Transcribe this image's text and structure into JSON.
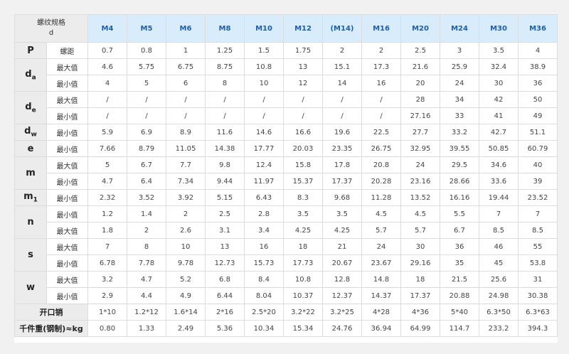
{
  "header": {
    "corner_title": "螺纹规格",
    "corner_symbol": "d",
    "sizes": [
      "M4",
      "M5",
      "M6",
      "M8",
      "M10",
      "M12",
      "(M14)",
      "M16",
      "M20",
      "M24",
      "M30",
      "M36"
    ]
  },
  "groups": [
    {
      "symbol": "P",
      "sub": "",
      "rows": [
        {
          "label": "螺距",
          "values": [
            "0.7",
            "0.8",
            "1",
            "1.25",
            "1.5",
            "1.75",
            "2",
            "2",
            "2.5",
            "3",
            "3.5",
            "4"
          ]
        }
      ]
    },
    {
      "symbol": "d",
      "sub": "a",
      "rows": [
        {
          "label": "最大值",
          "values": [
            "4.6",
            "5.75",
            "6.75",
            "8.75",
            "10.8",
            "13",
            "15.1",
            "17.3",
            "21.6",
            "25.9",
            "32.4",
            "38.9"
          ]
        },
        {
          "label": "最小值",
          "values": [
            "4",
            "5",
            "6",
            "8",
            "10",
            "12",
            "14",
            "16",
            "20",
            "24",
            "30",
            "36"
          ]
        }
      ]
    },
    {
      "symbol": "d",
      "sub": "e",
      "rows": [
        {
          "label": "最大值",
          "values": [
            "/",
            "/",
            "/",
            "/",
            "/",
            "/",
            "/",
            "/",
            "28",
            "34",
            "42",
            "50"
          ]
        },
        {
          "label": "最小值",
          "values": [
            "/",
            "/",
            "/",
            "/",
            "/",
            "/",
            "/",
            "/",
            "27.16",
            "33",
            "41",
            "49"
          ]
        }
      ]
    },
    {
      "symbol": "d",
      "sub": "w",
      "rows": [
        {
          "label": "最小值",
          "values": [
            "5.9",
            "6.9",
            "8.9",
            "11.6",
            "14.6",
            "16.6",
            "19.6",
            "22.5",
            "27.7",
            "33.2",
            "42.7",
            "51.1"
          ]
        }
      ]
    },
    {
      "symbol": "e",
      "sub": "",
      "rows": [
        {
          "label": "最小值",
          "values": [
            "7.66",
            "8.79",
            "11.05",
            "14.38",
            "17.77",
            "20.03",
            "23.35",
            "26.75",
            "32.95",
            "39.55",
            "50.85",
            "60.79"
          ]
        }
      ]
    },
    {
      "symbol": "m",
      "sub": "",
      "rows": [
        {
          "label": "最大值",
          "values": [
            "5",
            "6.7",
            "7.7",
            "9.8",
            "12.4",
            "15.8",
            "17.8",
            "20.8",
            "24",
            "29.5",
            "34.6",
            "40"
          ]
        },
        {
          "label": "最小值",
          "values": [
            "4.7",
            "6.4",
            "7.34",
            "9.44",
            "11.97",
            "15.37",
            "17.37",
            "20.28",
            "23.16",
            "28.66",
            "33.6",
            "39"
          ]
        }
      ]
    },
    {
      "symbol": "m",
      "sub": "1",
      "rows": [
        {
          "label": "最小值",
          "values": [
            "2.32",
            "3.52",
            "3.92",
            "5.15",
            "6.43",
            "8.3",
            "9.68",
            "11.28",
            "13.52",
            "16.16",
            "19.44",
            "23.52"
          ]
        }
      ]
    },
    {
      "symbol": "n",
      "sub": "",
      "rows": [
        {
          "label": "最小值",
          "values": [
            "1.2",
            "1.4",
            "2",
            "2.5",
            "2.8",
            "3.5",
            "3.5",
            "4.5",
            "4.5",
            "5.5",
            "7",
            "7"
          ]
        },
        {
          "label": "最大值",
          "values": [
            "1.8",
            "2",
            "2.6",
            "3.1",
            "3.4",
            "4.25",
            "4.25",
            "5.7",
            "5.7",
            "6.7",
            "8.5",
            "8.5"
          ]
        }
      ]
    },
    {
      "symbol": "s",
      "sub": "",
      "rows": [
        {
          "label": "最大值",
          "values": [
            "7",
            "8",
            "10",
            "13",
            "16",
            "18",
            "21",
            "24",
            "30",
            "36",
            "46",
            "55"
          ]
        },
        {
          "label": "最小值",
          "values": [
            "6.78",
            "7.78",
            "9.78",
            "12.73",
            "15.73",
            "17.73",
            "20.67",
            "23.67",
            "29.16",
            "35",
            "45",
            "53.8"
          ]
        }
      ]
    },
    {
      "symbol": "w",
      "sub": "",
      "rows": [
        {
          "label": "最大值",
          "values": [
            "3.2",
            "4.7",
            "5.2",
            "6.8",
            "8.4",
            "10.8",
            "12.8",
            "14.8",
            "18",
            "21.5",
            "25.6",
            "31"
          ]
        },
        {
          "label": "最小值",
          "values": [
            "2.9",
            "4.4",
            "4.9",
            "6.44",
            "8.04",
            "10.37",
            "12.37",
            "14.37",
            "17.37",
            "20.88",
            "24.98",
            "30.38"
          ]
        }
      ]
    }
  ],
  "extra_rows": [
    {
      "label": "开口销",
      "values": [
        "1*10",
        "1.2*12",
        "1.6*14",
        "2*16",
        "2.5*20",
        "3.2*22",
        "3.2*25",
        "4*28",
        "4*36",
        "5*40",
        "6.3*50",
        "6.3*63"
      ]
    },
    {
      "label": "千件重(钢制)≈kg",
      "values": [
        "0.80",
        "1.33",
        "2.49",
        "5.36",
        "10.34",
        "15.34",
        "24.76",
        "36.94",
        "64.99",
        "114.7",
        "233.2",
        "394.3"
      ]
    }
  ]
}
